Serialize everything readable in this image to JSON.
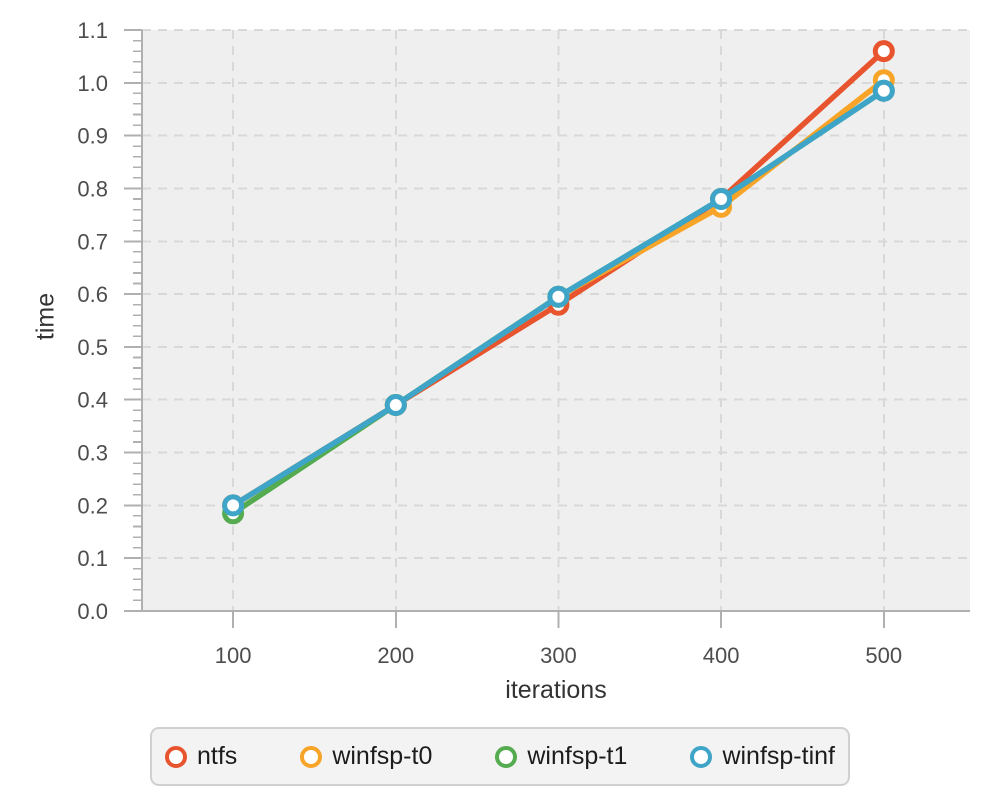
{
  "chart_data": {
    "type": "line",
    "title": "",
    "xlabel": "iterations",
    "ylabel": "time",
    "x": [
      100,
      200,
      300,
      400,
      500
    ],
    "series": [
      {
        "name": "ntfs",
        "color": "#E8542D",
        "values": [
          0.2,
          0.39,
          0.58,
          0.78,
          1.06
        ]
      },
      {
        "name": "winfsp-t0",
        "color": "#F8A428",
        "values": [
          0.2,
          0.39,
          0.595,
          0.765,
          1.005
        ]
      },
      {
        "name": "winfsp-t1",
        "color": "#55AB4F",
        "values": [
          0.185,
          0.39,
          0.595,
          0.78,
          0.985
        ]
      },
      {
        "name": "winfsp-tinf",
        "color": "#3FA5C8",
        "values": [
          0.2,
          0.39,
          0.595,
          0.78,
          0.985
        ]
      }
    ],
    "xlim": [
      44,
      553
    ],
    "ylim": [
      0,
      1.1
    ],
    "x_ticks": [
      100,
      200,
      300,
      400,
      500
    ],
    "y_ticks": [
      "0.0",
      "0.1",
      "0.2",
      "0.3",
      "0.4",
      "0.5",
      "0.6",
      "0.7",
      "0.8",
      "0.9",
      "1.0",
      "1.1"
    ],
    "y_tick_step": 0.1,
    "y_minor_step": 0.02,
    "grid": "dashed",
    "legend_position": "bottom",
    "marker_style": "open-circle"
  },
  "styles": {
    "plot_bg": "#efefef",
    "grid_color": "#d8d8d8",
    "axis_color": "#b0b0b0",
    "tick_color": "#b0b0b0",
    "tick_label_color": "#4d4d4d",
    "axis_label_color": "#333333",
    "legend_bg": "#f3f3f3",
    "legend_border": "#d0d0d0",
    "legend_text_color": "#1c1c1c",
    "marker_fill": "#ffffff"
  }
}
